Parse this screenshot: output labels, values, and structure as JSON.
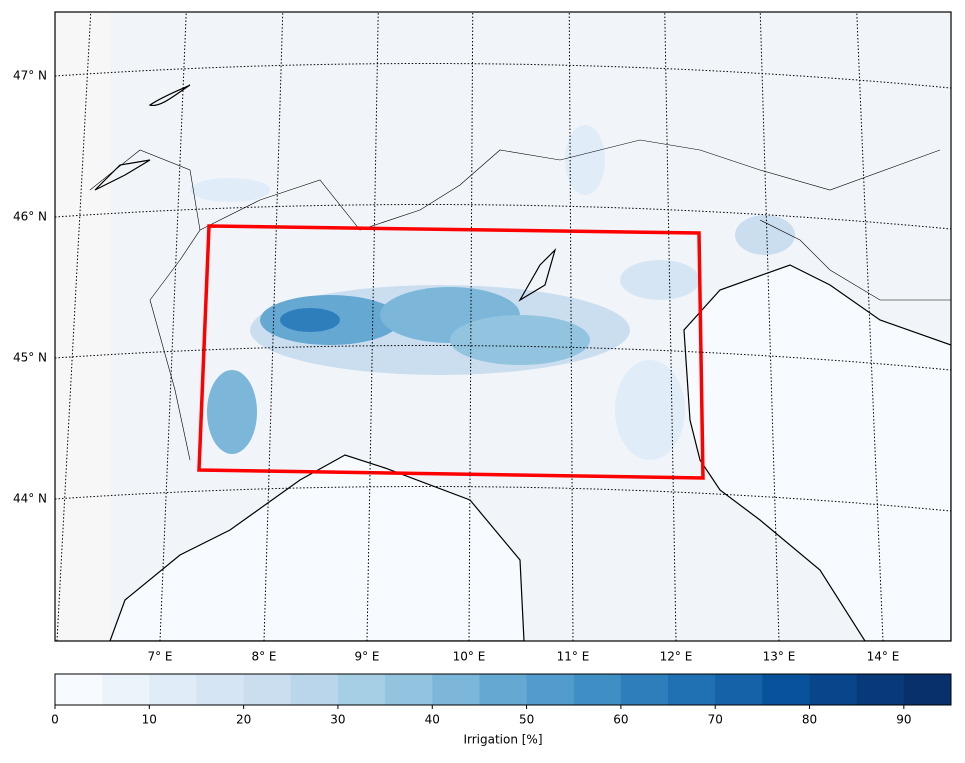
{
  "map": {
    "lat_labels": [
      "47° N",
      "46° N",
      "45° N",
      "44° N"
    ],
    "lon_labels": [
      "7° E",
      "8° E",
      "9° E",
      "10° E",
      "11° E",
      "12° E",
      "13° E",
      "14° E"
    ],
    "colorbar": {
      "label": "Irrigation [%]",
      "lim": [
        0,
        95
      ],
      "ticks": [
        0,
        10,
        20,
        30,
        40,
        50,
        60,
        70,
        80,
        90
      ],
      "colors": [
        "#f7fbff",
        "#ebf3fb",
        "#e0ecf8",
        "#d6e5f4",
        "#cadef0",
        "#bad6eb",
        "#a6cee4",
        "#93c4df",
        "#7cb7da",
        "#65a9d3",
        "#519ccc",
        "#3f8ec4",
        "#2f7ebc",
        "#2070b4",
        "#1562a9",
        "#08529c",
        "#08458a",
        "#083979",
        "#08306b"
      ]
    }
  }
}
